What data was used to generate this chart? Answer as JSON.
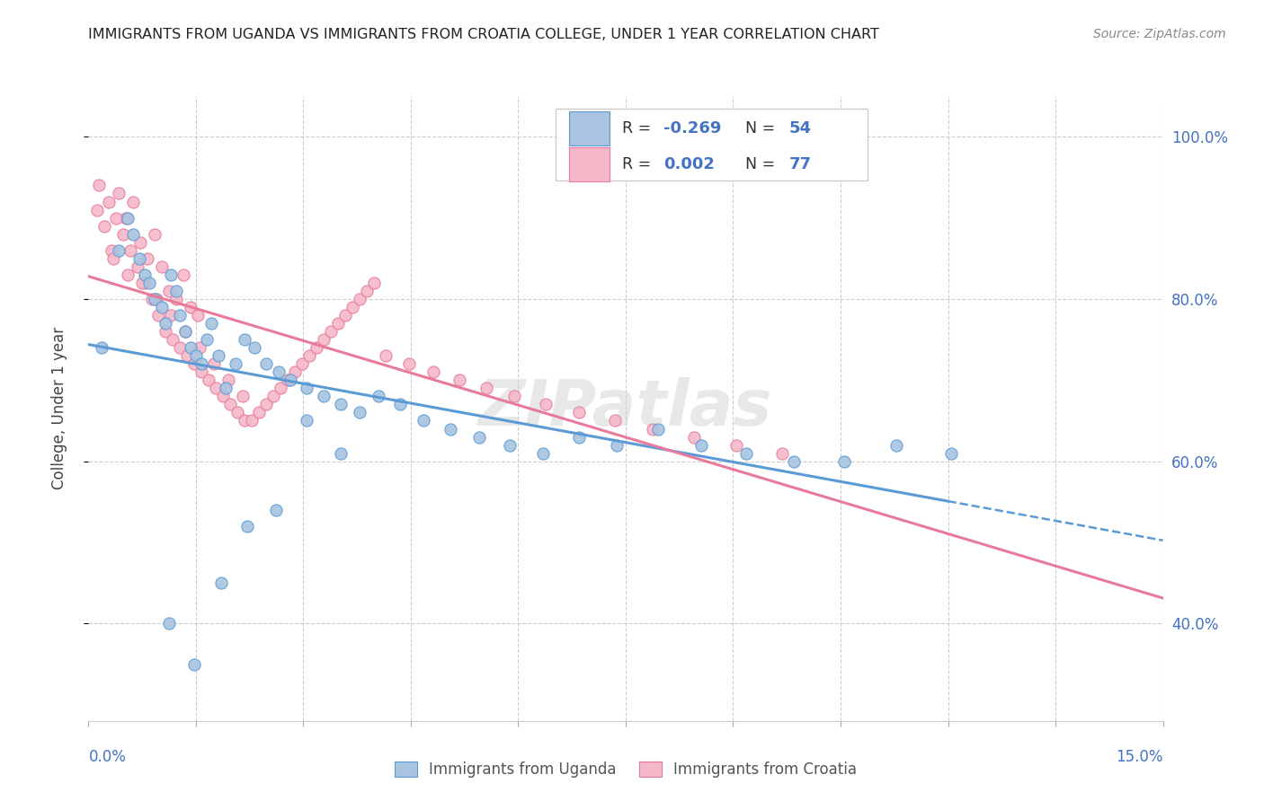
{
  "title": "IMMIGRANTS FROM UGANDA VS IMMIGRANTS FROM CROATIA COLLEGE, UNDER 1 YEAR CORRELATION CHART",
  "source": "Source: ZipAtlas.com",
  "ylabel": "College, Under 1 year",
  "yaxis_ticks": [
    40.0,
    60.0,
    80.0,
    100.0
  ],
  "xmin": 0.0,
  "xmax": 15.0,
  "ymin": 28.0,
  "ymax": 105.0,
  "uganda_R": -0.269,
  "uganda_N": 54,
  "croatia_R": 0.002,
  "croatia_N": 77,
  "uganda_color": "#a8c4e0",
  "croatia_color": "#f4b8c8",
  "uganda_line_color": "#5b9bd5",
  "croatia_line_color": "#e87a9a",
  "background_color": "#ffffff",
  "watermark": "ZIPatlas",
  "uganda_scatter_x": [
    0.18,
    0.42,
    0.55,
    0.62,
    0.71,
    0.78,
    0.85,
    0.92,
    1.02,
    1.08,
    1.15,
    1.22,
    1.28,
    1.35,
    1.42,
    1.5,
    1.58,
    1.65,
    1.72,
    1.82,
    1.92,
    2.05,
    2.18,
    2.32,
    2.48,
    2.65,
    2.82,
    3.05,
    3.28,
    3.52,
    3.78,
    4.05,
    4.35,
    4.68,
    5.05,
    5.45,
    5.88,
    6.35,
    6.85,
    7.38,
    7.95,
    8.55,
    9.18,
    9.85,
    10.55,
    11.28,
    12.05,
    1.12,
    1.48,
    1.85,
    2.22,
    2.62,
    3.05,
    3.52
  ],
  "uganda_scatter_y": [
    74,
    86,
    90,
    88,
    85,
    83,
    82,
    80,
    79,
    77,
    83,
    81,
    78,
    76,
    74,
    73,
    72,
    75,
    77,
    73,
    69,
    72,
    75,
    74,
    72,
    71,
    70,
    69,
    68,
    67,
    66,
    68,
    67,
    65,
    64,
    63,
    62,
    61,
    63,
    62,
    64,
    62,
    61,
    60,
    60,
    62,
    61,
    40,
    35,
    45,
    52,
    54,
    65,
    61
  ],
  "croatia_scatter_x": [
    0.12,
    0.22,
    0.32,
    0.42,
    0.52,
    0.62,
    0.72,
    0.82,
    0.92,
    1.02,
    1.12,
    1.22,
    1.32,
    1.42,
    1.52,
    0.15,
    0.28,
    0.38,
    0.48,
    0.58,
    0.68,
    0.78,
    0.88,
    0.98,
    1.08,
    1.18,
    1.28,
    1.38,
    1.48,
    1.58,
    1.68,
    1.78,
    1.88,
    1.98,
    2.08,
    2.18,
    2.28,
    2.38,
    2.48,
    2.58,
    2.68,
    2.78,
    2.88,
    2.98,
    3.08,
    3.18,
    3.28,
    3.38,
    3.48,
    3.58,
    3.68,
    3.78,
    3.88,
    3.98,
    4.15,
    4.48,
    4.82,
    5.18,
    5.55,
    5.95,
    6.38,
    6.85,
    7.35,
    7.88,
    8.45,
    9.05,
    9.68,
    0.35,
    0.55,
    0.75,
    0.95,
    1.15,
    1.35,
    1.55,
    1.75,
    1.95,
    2.15
  ],
  "croatia_scatter_y": [
    91,
    89,
    86,
    93,
    90,
    92,
    87,
    85,
    88,
    84,
    81,
    80,
    83,
    79,
    78,
    94,
    92,
    90,
    88,
    86,
    84,
    82,
    80,
    78,
    76,
    75,
    74,
    73,
    72,
    71,
    70,
    69,
    68,
    67,
    66,
    65,
    65,
    66,
    67,
    68,
    69,
    70,
    71,
    72,
    73,
    74,
    75,
    76,
    77,
    78,
    79,
    80,
    81,
    82,
    73,
    72,
    71,
    70,
    69,
    68,
    67,
    66,
    65,
    64,
    63,
    62,
    61,
    85,
    83,
    82,
    80,
    78,
    76,
    74,
    72,
    70,
    68
  ]
}
